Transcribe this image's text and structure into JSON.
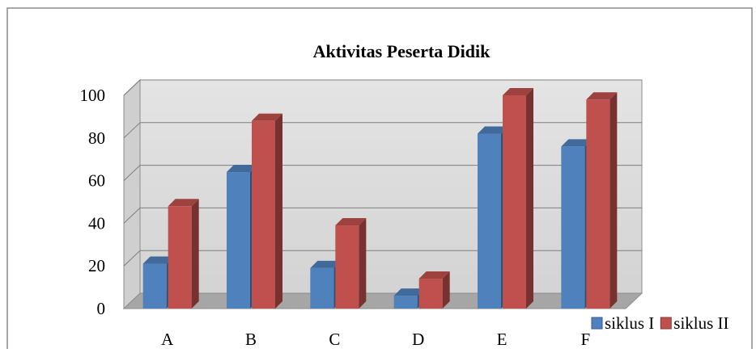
{
  "chart_data": {
    "type": "bar",
    "title": "Aktivitas Peserta Didik",
    "categories": [
      "A",
      "B",
      "C",
      "D",
      "E",
      "F"
    ],
    "series": [
      {
        "name": "siklus I",
        "values": [
          21,
          64,
          19,
          6,
          82,
          76
        ],
        "color": "#4f81bd"
      },
      {
        "name": "siklus II",
        "values": [
          48,
          88,
          39,
          14,
          100,
          98
        ],
        "color": "#c0504d"
      }
    ],
    "ylim": [
      0,
      100
    ],
    "yticks": [
      "0",
      "20",
      "40",
      "60",
      "80",
      "100"
    ],
    "xlabel": "",
    "ylabel": "",
    "grid": true,
    "legend": "bottom-right",
    "style": "3d-clustered"
  }
}
